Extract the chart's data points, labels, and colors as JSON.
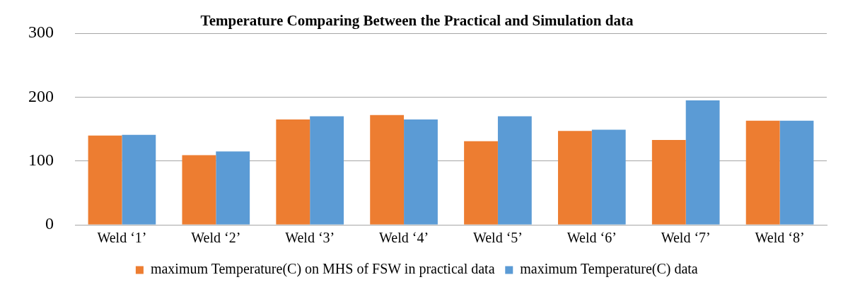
{
  "chart_data": {
    "type": "bar",
    "title": "Temperature Comparing Between the Practical and Simulation data",
    "categories": [
      "Weld ‘1’",
      "Weld ‘2’",
      "Weld ‘3’",
      "Weld ‘4’",
      "Weld ‘5’",
      "Weld ‘6’",
      "Weld ‘7’",
      "Weld ‘8’"
    ],
    "series": [
      {
        "name": "maximum Temperature(C) on MHS of FSW in practical data",
        "color": "#ed7d31",
        "values": [
          140,
          109,
          165,
          172,
          131,
          147,
          133,
          163
        ]
      },
      {
        "name": "maximum Temperature(C) data",
        "color": "#5b9bd5",
        "values": [
          141,
          115,
          170,
          165,
          170,
          149,
          195,
          163
        ]
      }
    ],
    "ylim": [
      0,
      300
    ],
    "yticks": [
      0,
      100,
      200,
      300
    ],
    "grid": "y",
    "legend": "bottom"
  }
}
